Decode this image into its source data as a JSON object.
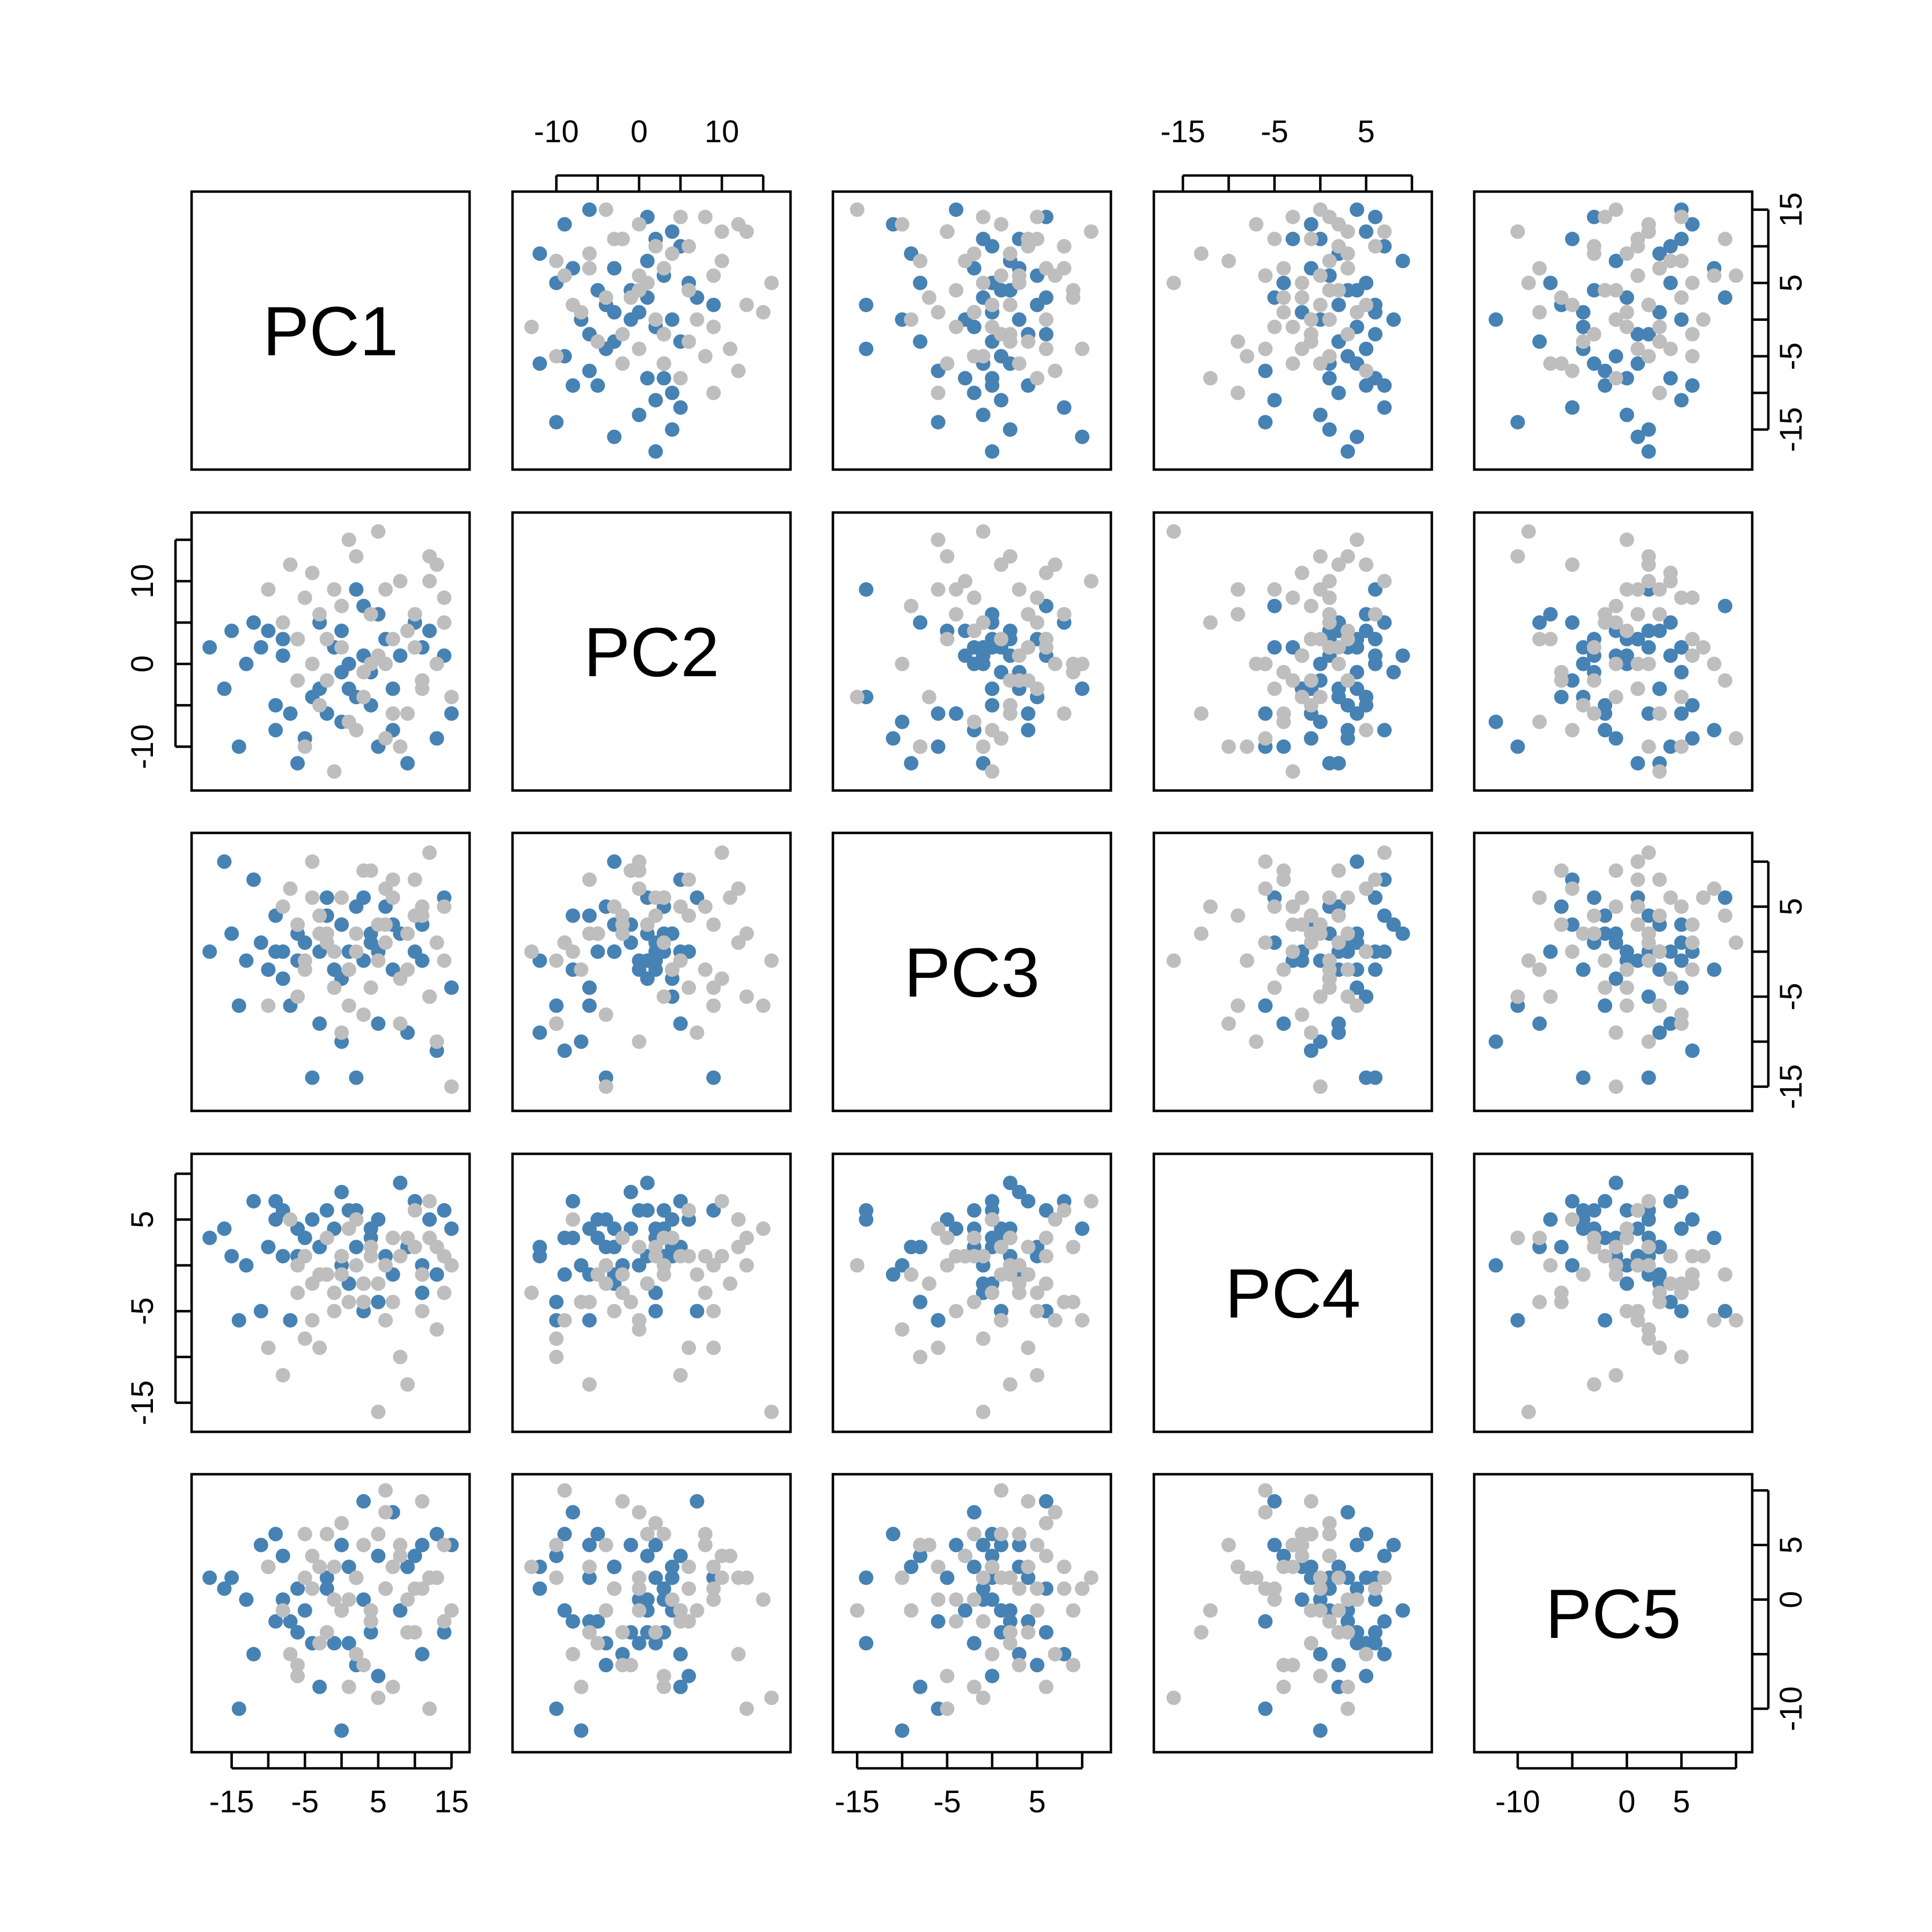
{
  "chart_data": {
    "type": "scatter",
    "kind": "scatterplot-matrix",
    "variables": [
      "PC1",
      "PC2",
      "PC3",
      "PC4",
      "PC5"
    ],
    "grid": false,
    "group_colors": [
      "#4682b4",
      "#bebebe"
    ],
    "axes": [
      {
        "var": "PC1",
        "range": [
          -19,
          16
        ],
        "ticks": [
          -15,
          -10,
          -5,
          0,
          5,
          10,
          15
        ],
        "labeled": [
          -15,
          -5,
          5,
          15
        ]
      },
      {
        "var": "PC2",
        "range": [
          -14,
          17
        ],
        "ticks": [
          -10,
          -5,
          0,
          5,
          10,
          15
        ],
        "labeled": [
          -10,
          0,
          10
        ]
      },
      {
        "var": "PC3",
        "range": [
          -16.5,
          12
        ],
        "ticks": [
          -15,
          -10,
          -5,
          0,
          5,
          10
        ],
        "labeled": [
          -15,
          -5,
          5
        ]
      },
      {
        "var": "PC4",
        "range": [
          -17,
          11
        ],
        "ticks": [
          -15,
          -10,
          -5,
          0,
          5,
          10
        ],
        "labeled": [
          -15,
          -5,
          5
        ]
      },
      {
        "var": "PC5",
        "range": [
          -13,
          10.5
        ],
        "ticks": [
          -10,
          -5,
          0,
          5,
          10
        ],
        "labeled": [
          -10,
          0,
          5
        ]
      }
    ],
    "series": [
      {
        "color": "#4682b4",
        "points": [
          [
            -18,
            2,
            0,
            3,
            2
          ],
          [
            -16,
            -3,
            10,
            4,
            1
          ],
          [
            -14,
            -10,
            -6,
            -6,
            -10
          ],
          [
            -12,
            5,
            8,
            7,
            -5
          ],
          [
            -11,
            2,
            1,
            -5,
            5
          ],
          [
            -10,
            4,
            -2,
            2,
            3
          ],
          [
            -9,
            -5,
            0,
            5,
            6
          ],
          [
            -8,
            1,
            -3,
            1,
            4
          ],
          [
            -7,
            -6,
            -6,
            -6,
            -2
          ],
          [
            -6,
            3,
            2,
            4,
            -3
          ],
          [
            -5,
            -9,
            1,
            3,
            -1
          ],
          [
            -4,
            -4,
            -14,
            5,
            -4
          ],
          [
            -3,
            -3,
            0,
            2,
            3
          ],
          [
            -2,
            3,
            6,
            6,
            1
          ],
          [
            -2,
            -6,
            4,
            -1,
            2
          ],
          [
            -1,
            2,
            -2,
            4,
            -4
          ],
          [
            0,
            -1,
            3,
            8,
            5
          ],
          [
            0,
            4,
            -3,
            1,
            -1
          ],
          [
            1,
            -3,
            0,
            -2,
            3
          ],
          [
            2,
            9,
            -14,
            6,
            2
          ],
          [
            2,
            -4,
            5,
            2,
            -6
          ],
          [
            3,
            1,
            -1,
            -2,
            0
          ],
          [
            4,
            -5,
            2,
            3,
            -2
          ],
          [
            5,
            6,
            0,
            5,
            -7
          ],
          [
            5,
            -10,
            -8,
            -4,
            4
          ],
          [
            6,
            3,
            5,
            1,
            1
          ],
          [
            7,
            -8,
            -2,
            3,
            8
          ],
          [
            8,
            1,
            2,
            9,
            -1
          ],
          [
            9,
            -12,
            -9,
            2,
            3
          ],
          [
            10,
            5,
            0,
            7,
            4
          ],
          [
            11,
            -2,
            3,
            0,
            -5
          ],
          [
            12,
            4,
            -5,
            5,
            2
          ],
          [
            13,
            -9,
            -11,
            -1,
            6
          ],
          [
            14,
            1,
            6,
            6,
            -3
          ],
          [
            15,
            -6,
            -4,
            4,
            5
          ],
          [
            -13,
            0,
            -1,
            0,
            0
          ],
          [
            -9,
            -8,
            4,
            7,
            -2
          ],
          [
            -6,
            -12,
            -1,
            1,
            1
          ],
          [
            0,
            -7,
            -10,
            0,
            -12
          ],
          [
            3,
            7,
            6,
            -5,
            9
          ],
          [
            -3,
            5,
            -8,
            2,
            -8
          ],
          [
            7,
            -3,
            3,
            -1,
            3
          ],
          [
            -8,
            3,
            0,
            6,
            0
          ],
          [
            4,
            -1,
            1,
            4,
            -3
          ],
          [
            11,
            2,
            -1,
            -3,
            5
          ],
          [
            -15,
            4,
            2,
            1,
            2
          ],
          [
            1,
            0,
            -2,
            6,
            -4
          ]
        ]
      },
      {
        "color": "#bebebe",
        "points": [
          [
            -10,
            9,
            -6,
            -9,
            3
          ],
          [
            -8,
            5,
            5,
            -12,
            -1
          ],
          [
            -6,
            -2,
            3,
            -3,
            -6
          ],
          [
            -5,
            8,
            -2,
            1,
            6
          ],
          [
            -4,
            0,
            10,
            -6,
            1
          ],
          [
            -3,
            6,
            4,
            -9,
            3
          ],
          [
            -2,
            -2,
            2,
            3,
            -3
          ],
          [
            -1,
            9,
            -4,
            -5,
            0
          ],
          [
            0,
            2,
            6,
            1,
            7
          ],
          [
            1,
            -7,
            -2,
            -4,
            -8
          ],
          [
            2,
            13,
            2,
            0,
            2
          ],
          [
            3,
            -4,
            -7,
            -2,
            5
          ],
          [
            4,
            0,
            9,
            2,
            -1
          ],
          [
            5,
            16,
            -1,
            -16,
            -9
          ],
          [
            6,
            -9,
            1,
            -6,
            10
          ],
          [
            7,
            3,
            6,
            3,
            -8
          ],
          [
            8,
            10,
            -3,
            1,
            4
          ],
          [
            9,
            -6,
            2,
            -13,
            -3
          ],
          [
            10,
            6,
            8,
            6,
            1
          ],
          [
            11,
            -2,
            4,
            -1,
            9
          ],
          [
            12,
            13,
            -5,
            3,
            -10
          ],
          [
            13,
            0,
            -10,
            -7,
            2
          ],
          [
            14,
            8,
            5,
            -3,
            5
          ],
          [
            15,
            -4,
            -15,
            0,
            -1
          ],
          [
            -7,
            12,
            7,
            5,
            -5
          ],
          [
            -5,
            -10,
            -1,
            -8,
            2
          ],
          [
            -2,
            3,
            1,
            -1,
            6
          ],
          [
            1,
            15,
            -6,
            4,
            0
          ],
          [
            3,
            -1,
            9,
            -4,
            -6
          ],
          [
            6,
            9,
            3,
            0,
            1
          ],
          [
            8,
            -10,
            -8,
            -10,
            5
          ],
          [
            10,
            2,
            4,
            2,
            -3
          ],
          [
            12,
            10,
            11,
            7,
            2
          ],
          [
            -1,
            -13,
            0,
            -3,
            3
          ],
          [
            4,
            6,
            -4,
            1,
            -2
          ],
          [
            6,
            0,
            7,
            -6,
            8
          ],
          [
            -3,
            -5,
            2,
            -1,
            -4
          ],
          [
            9,
            4,
            -2,
            3,
            0
          ],
          [
            -4,
            11,
            6,
            -2,
            4
          ],
          [
            2,
            -8,
            0,
            5,
            -5
          ],
          [
            11,
            -3,
            5,
            -5,
            1
          ],
          [
            0,
            7,
            -9,
            -1,
            -1
          ],
          [
            5,
            1,
            3,
            -2,
            6
          ],
          [
            13,
            12,
            1,
            2,
            2
          ],
          [
            -6,
            3,
            -5,
            0,
            -7
          ],
          [
            7,
            -6,
            8,
            -4,
            3
          ],
          [
            14,
            5,
            -1,
            1,
            -2
          ]
        ]
      }
    ]
  }
}
